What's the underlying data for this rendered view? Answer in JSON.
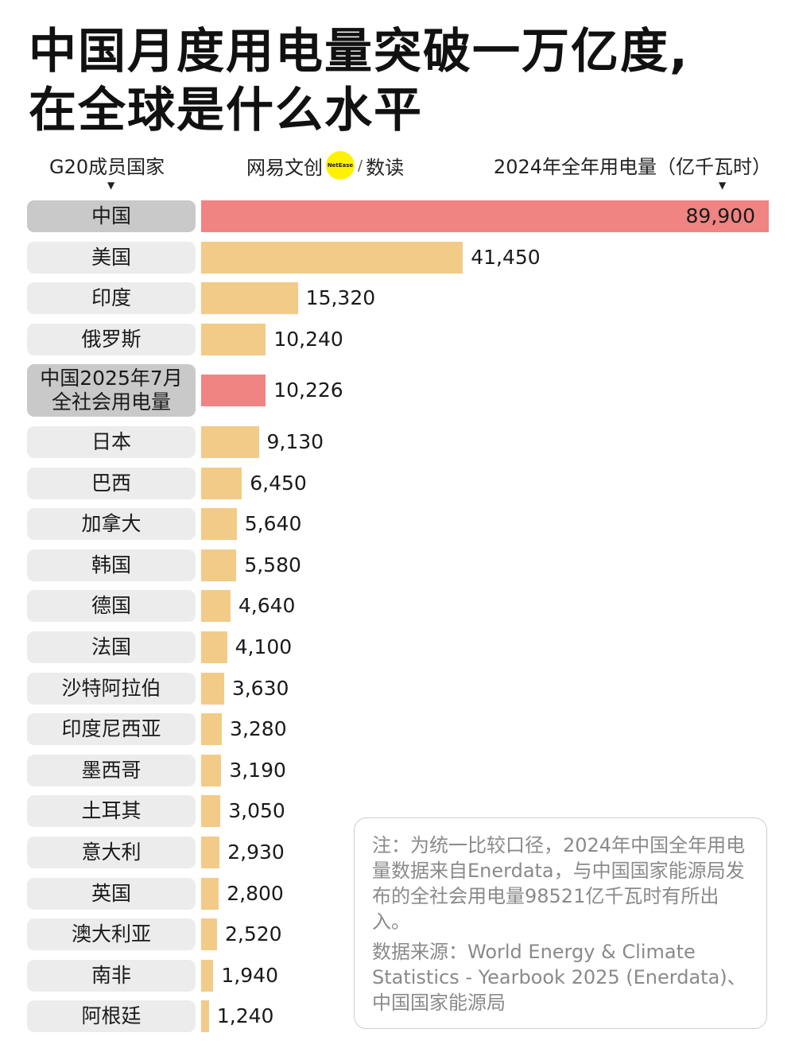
{
  "title_lines": [
    "中国月度用电量突破一万亿度,",
    "在全球是什么水平"
  ],
  "header": {
    "left_label": "G20成员国家",
    "brand_name": "网易文创",
    "brand_badge": "NetEase",
    "brand_separator": "/",
    "brand_section": "数读",
    "right_label": "2024年全年用电量（亿千瓦时）"
  },
  "colors": {
    "bar_default": "#f2cb88",
    "bar_highlight": "#ef8482"
  },
  "chart_data": {
    "type": "bar",
    "orientation": "horizontal",
    "xlim": [
      0,
      89900
    ],
    "categories": [
      "中国",
      "美国",
      "印度",
      "俄罗斯",
      "中国2025年7月\n全社会用电量",
      "日本",
      "巴西",
      "加拿大",
      "韩国",
      "德国",
      "法国",
      "沙特阿拉伯",
      "印度尼西亚",
      "墨西哥",
      "土耳其",
      "意大利",
      "英国",
      "澳大利亚",
      "南非",
      "阿根廷"
    ],
    "values": [
      89900,
      41450,
      15320,
      10240,
      10226,
      9130,
      6450,
      5640,
      5580,
      4640,
      4100,
      3630,
      3280,
      3190,
      3050,
      2930,
      2800,
      2520,
      1940,
      1240
    ],
    "value_labels": [
      "89,900",
      "41,450",
      "15,320",
      "10,240",
      "10,226",
      "9,130",
      "6,450",
      "5,640",
      "5,580",
      "4,640",
      "4,100",
      "3,630",
      "3,280",
      "3,190",
      "3,050",
      "2,930",
      "2,800",
      "2,520",
      "1,940",
      "1,240"
    ],
    "highlighted": [
      true,
      false,
      false,
      false,
      true,
      false,
      false,
      false,
      false,
      false,
      false,
      false,
      false,
      false,
      false,
      false,
      false,
      false,
      false,
      false
    ]
  },
  "note": {
    "text": "注：为统一比较口径，2024年中国全年用电量数据来自Enerdata，与中国国家能源局发布的全社会用电量98521亿千瓦时有所出入。",
    "source": "数据来源：World Energy & Climate Statistics - Yearbook 2025 (Enerdata)、中国国家能源局"
  }
}
